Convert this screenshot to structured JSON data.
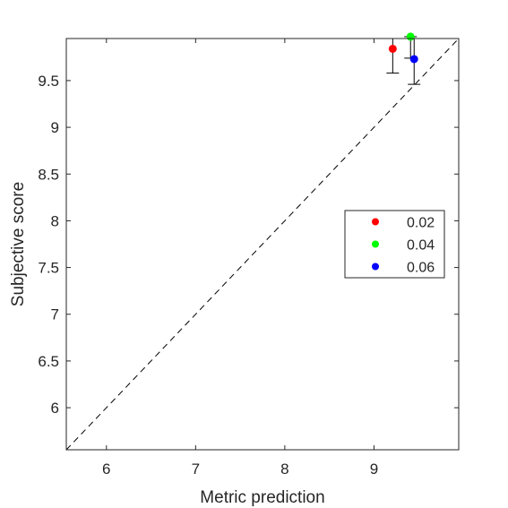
{
  "chart_data": {
    "type": "scatter",
    "title": "",
    "xlabel": "Metric prediction",
    "ylabel": "Subjective score",
    "xlim": [
      5.55,
      9.95
    ],
    "ylim": [
      5.55,
      9.95
    ],
    "xticks": [
      6,
      7,
      8,
      9
    ],
    "yticks": [
      6,
      6.5,
      7,
      7.5,
      8,
      8.5,
      9,
      9.5
    ],
    "x_tick_labels": [
      "6",
      "7",
      "8",
      "9"
    ],
    "y_tick_labels": [
      "6",
      "6.5",
      "7",
      "7.5",
      "8",
      "8.5",
      "9",
      "9.5"
    ],
    "diagonal_reference_line": true,
    "grid": false,
    "legend_position": "center-right",
    "series": [
      {
        "name": "0.02",
        "color": "#ff0000",
        "x": 9.21,
        "y": 9.84,
        "error_low": 9.58,
        "error_high": 9.95
      },
      {
        "name": "0.04",
        "color": "#00ff00",
        "x": 9.41,
        "y": 9.97,
        "error_low": 9.74,
        "error_high": 9.97
      },
      {
        "name": "0.06",
        "color": "#0000ff",
        "x": 9.45,
        "y": 9.73,
        "error_low": 9.46,
        "error_high": 9.95
      }
    ]
  }
}
